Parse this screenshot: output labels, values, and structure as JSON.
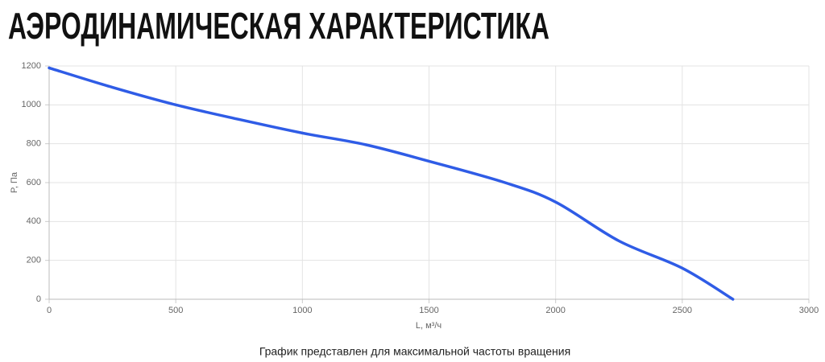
{
  "chart_data": {
    "type": "line",
    "title": "АЭРОДИНАМИЧЕСКАЯ ХАРАКТЕРИСТИКА",
    "note": "График представлен для максимальной частоты вращения",
    "x_label": "L, м³/ч",
    "y_label": "P, Па",
    "x": [
      0,
      250,
      500,
      750,
      1000,
      1250,
      1500,
      1800,
      2000,
      2250,
      2500,
      2700
    ],
    "series": [
      {
        "name": "P",
        "color": "#2f5ce6",
        "values": [
          1190,
          1090,
          1000,
          925,
          855,
          795,
          710,
          600,
          500,
          300,
          160,
          0
        ]
      }
    ],
    "xlim": [
      0,
      3000
    ],
    "xticks": [
      0,
      500,
      1000,
      1500,
      2000,
      2500,
      3000
    ],
    "ylim": [
      0,
      1200
    ],
    "yticks": [
      0,
      200,
      400,
      600,
      800,
      1000,
      1200
    ],
    "grid": true
  }
}
